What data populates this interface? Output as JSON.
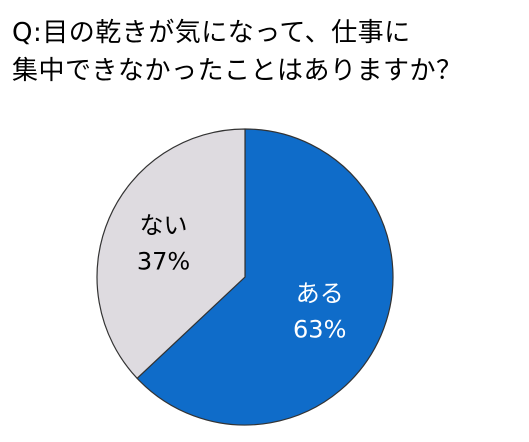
{
  "chart_data": {
    "type": "pie",
    "title_lines": [
      "Q:目の乾きが気になって、仕事に",
      "集中できなかったことはありますか？"
    ],
    "slices": [
      {
        "label": "ある",
        "percent_label": "63%",
        "value": 63,
        "color": "#0f6cc9"
      },
      {
        "label": "ない",
        "percent_label": "37%",
        "value": 37,
        "color": "#dedbe0"
      }
    ],
    "start": "12 o'clock",
    "direction": "clockwise",
    "label_colors": [
      "#ffffff",
      "#000000"
    ],
    "outline_color": "#333333"
  }
}
